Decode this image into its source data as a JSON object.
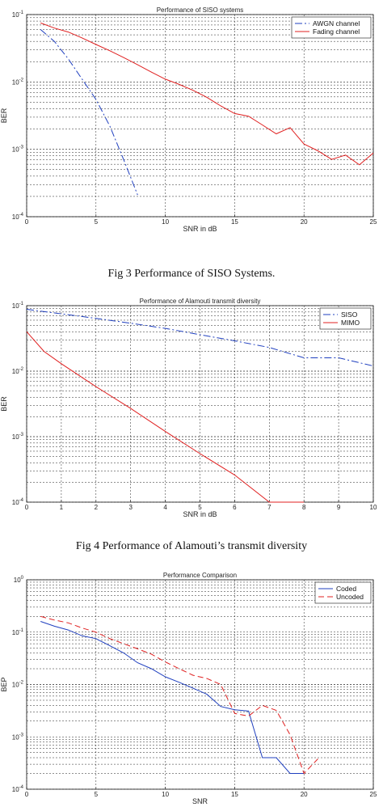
{
  "captions": {
    "fig3": "Fig 3 Performance of SISO Systems.",
    "fig4": "Fig 4 Performance of Alamouti’s transmit diversity"
  },
  "chart_data": [
    {
      "type": "line",
      "title": "Performance of SISO systems",
      "xlabel": "SNR in dB",
      "ylabel": "BER",
      "xlim": [
        0,
        25
      ],
      "ylim": [
        0.0001,
        0.1
      ],
      "yscale": "log",
      "grid": true,
      "legend_position": "top-right",
      "xticks": [
        "0",
        "5",
        "10",
        "15",
        "20",
        "25"
      ],
      "yticks": [
        {
          "base": "10",
          "exp": "-1",
          "value": 0.1
        },
        {
          "base": "10",
          "exp": "-2",
          "value": 0.01
        },
        {
          "base": "10",
          "exp": "-3",
          "value": 0.001
        },
        {
          "base": "10",
          "exp": "-4",
          "value": 0.0001
        }
      ],
      "series": [
        {
          "name": "AWGN channel",
          "color": "#1f3fbf",
          "dash": "dashdot",
          "x": [
            1,
            2,
            3,
            4,
            5,
            6,
            7,
            8
          ],
          "y": [
            0.06,
            0.04,
            0.022,
            0.011,
            0.0055,
            0.0022,
            0.0007,
            0.00021
          ]
        },
        {
          "name": "Fading channel",
          "color": "#e02020",
          "dash": "solid",
          "x": [
            1,
            2,
            3,
            4,
            5,
            6,
            7,
            8,
            9,
            10,
            11,
            12,
            13,
            14,
            15,
            16,
            17,
            18,
            19,
            20,
            21,
            22,
            23,
            24,
            25
          ],
          "y": [
            0.075,
            0.063,
            0.055,
            0.045,
            0.036,
            0.029,
            0.023,
            0.018,
            0.014,
            0.011,
            0.0092,
            0.0075,
            0.0059,
            0.0044,
            0.0034,
            0.0031,
            0.0023,
            0.0017,
            0.0021,
            0.0012,
            0.00095,
            0.00071,
            0.00082,
            0.00059,
            0.00088
          ]
        }
      ]
    },
    {
      "type": "line",
      "title": "Performance of Alamouti transmit diversity",
      "xlabel": "SNR in dB",
      "ylabel": "BER",
      "xlim": [
        0,
        10
      ],
      "ylim": [
        0.0001,
        0.1
      ],
      "yscale": "log",
      "grid": true,
      "legend_position": "top-right",
      "xticks": [
        "0",
        "1",
        "2",
        "3",
        "4",
        "5",
        "6",
        "7",
        "8",
        "9",
        "10"
      ],
      "yticks": [
        {
          "base": "10",
          "exp": "-1",
          "value": 0.1
        },
        {
          "base": "10",
          "exp": "-2",
          "value": 0.01
        },
        {
          "base": "10",
          "exp": "-3",
          "value": 0.001
        },
        {
          "base": "10",
          "exp": "-4",
          "value": 0.0001
        }
      ],
      "series": [
        {
          "name": "SISO",
          "color": "#1f3fbf",
          "dash": "dashdot",
          "x": [
            0,
            1,
            2,
            3,
            4,
            5,
            6,
            7,
            8,
            9,
            10
          ],
          "y": [
            0.088,
            0.075,
            0.064,
            0.054,
            0.045,
            0.036,
            0.029,
            0.023,
            0.016,
            0.016,
            0.012
          ]
        },
        {
          "name": "MIMO",
          "color": "#e02020",
          "dash": "solid",
          "x": [
            0,
            0.5,
            1,
            2,
            3,
            4,
            5,
            6,
            7,
            8
          ],
          "y": [
            0.04,
            0.02,
            0.013,
            0.0058,
            0.0027,
            0.0012,
            0.00055,
            0.00026,
            0.0001,
            0.0001
          ]
        }
      ]
    },
    {
      "type": "line",
      "title": "Performance Comparison",
      "xlabel": "SNR",
      "ylabel": "BEP",
      "xlim": [
        0,
        25
      ],
      "ylim": [
        0.0001,
        1
      ],
      "yscale": "log",
      "grid": true,
      "legend_position": "top-right",
      "xticks": [
        "0",
        "5",
        "10",
        "15",
        "20",
        "25"
      ],
      "yticks": [
        {
          "base": "10",
          "exp": "0",
          "value": 1
        },
        {
          "base": "10",
          "exp": "-1",
          "value": 0.1
        },
        {
          "base": "10",
          "exp": "-2",
          "value": 0.01
        },
        {
          "base": "10",
          "exp": "-3",
          "value": 0.001
        },
        {
          "base": "10",
          "exp": "-4",
          "value": 0.0001
        }
      ],
      "series": [
        {
          "name": "Coded",
          "color": "#1f3fbf",
          "dash": "solid",
          "x": [
            1,
            2,
            3,
            4,
            5,
            6,
            7,
            8,
            9,
            10,
            11,
            12,
            13,
            14,
            15,
            16,
            17,
            18,
            19,
            20
          ],
          "y": [
            0.16,
            0.13,
            0.11,
            0.085,
            0.075,
            0.055,
            0.04,
            0.026,
            0.02,
            0.014,
            0.011,
            0.0085,
            0.0065,
            0.0038,
            0.0033,
            0.0031,
            0.0004,
            0.0004,
            0.0002,
            0.0002
          ]
        },
        {
          "name": "Uncoded",
          "color": "#e02020",
          "dash": "dash",
          "x": [
            1,
            2,
            3,
            4,
            5,
            6,
            7,
            8,
            9,
            10,
            11,
            12,
            13,
            14,
            15,
            16,
            17,
            18,
            19,
            20,
            21
          ],
          "y": [
            0.2,
            0.17,
            0.15,
            0.12,
            0.1,
            0.075,
            0.06,
            0.048,
            0.038,
            0.027,
            0.02,
            0.015,
            0.013,
            0.01,
            0.0028,
            0.0025,
            0.004,
            0.0032,
            0.0011,
            0.0002,
            0.00038
          ]
        }
      ]
    }
  ]
}
